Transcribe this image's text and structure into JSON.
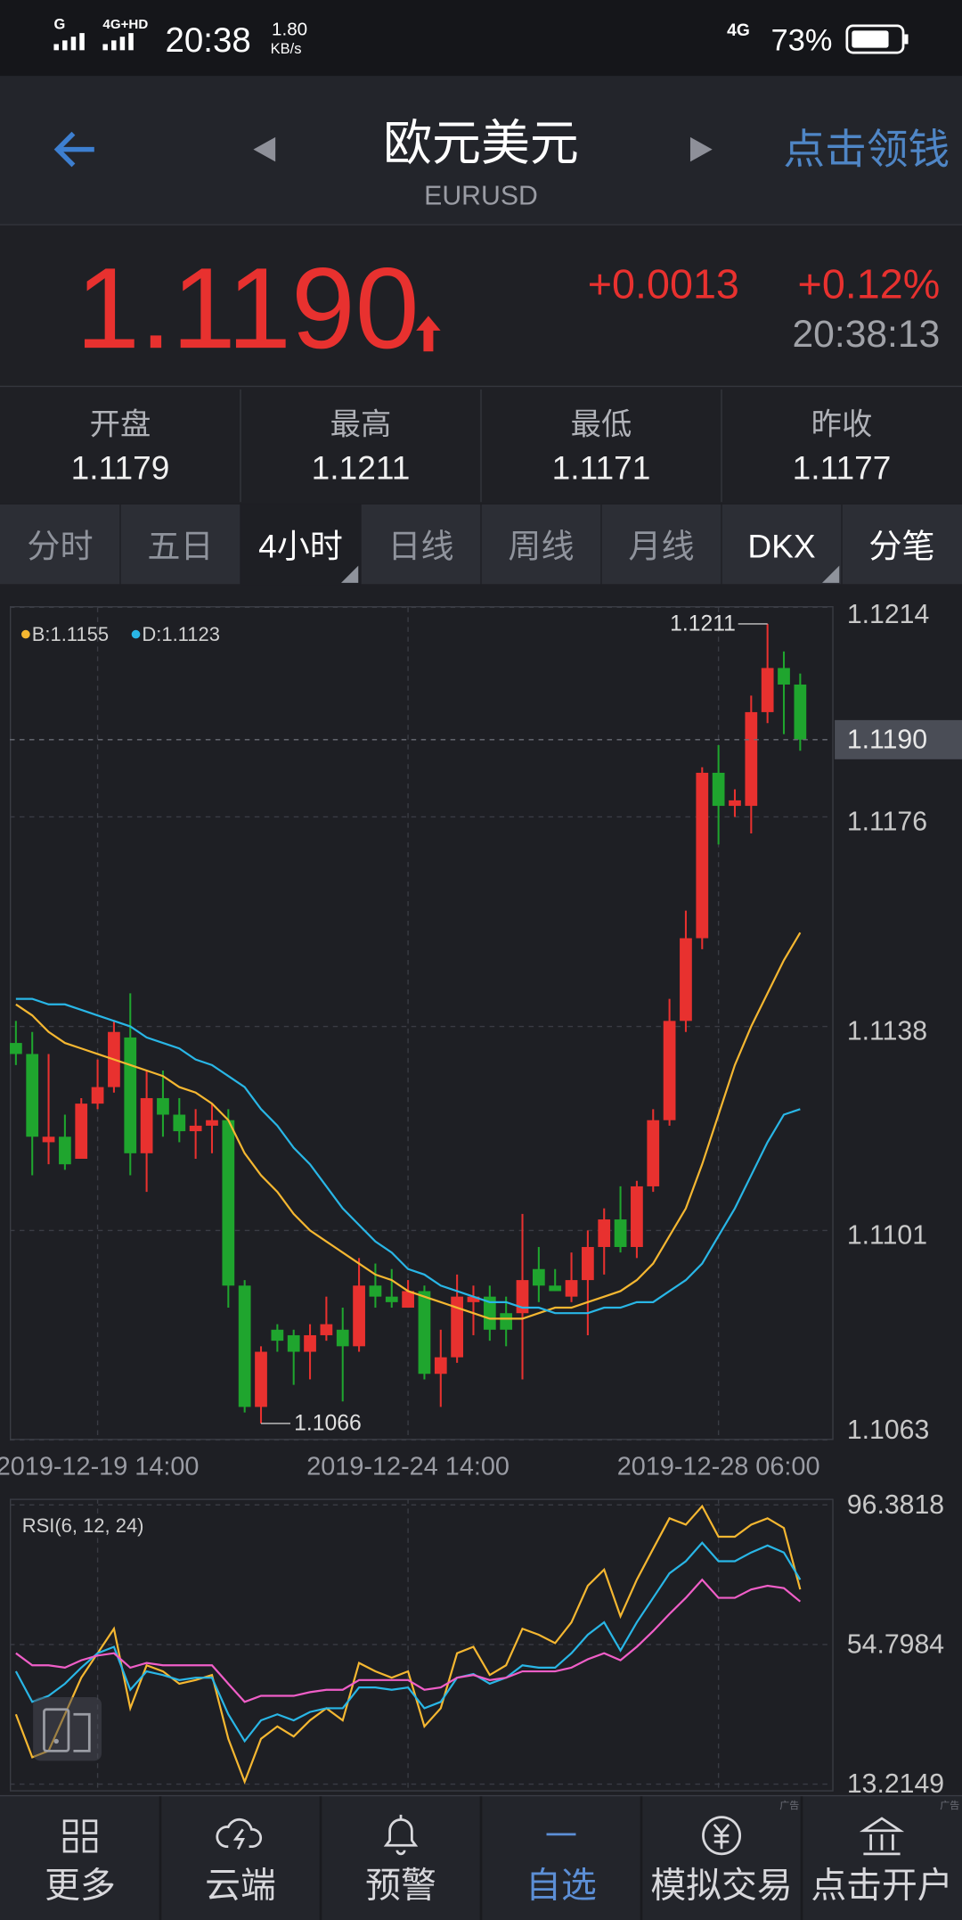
{
  "status_bar": {
    "signal": "G",
    "network": "4G+HD",
    "time": "20:38",
    "speed": "1.80",
    "speed_unit": "KB/s",
    "network2": "4G",
    "battery": "73%"
  },
  "header": {
    "title": "欧元美元",
    "subtitle": "EURUSD",
    "action": "点击领钱"
  },
  "quote": {
    "price": "1.1190",
    "change": "+0.0013",
    "change_pct": "+0.12%",
    "time": "20:38:13"
  },
  "stats": [
    {
      "label": "开盘",
      "value": "1.1179"
    },
    {
      "label": "最高",
      "value": "1.1211"
    },
    {
      "label": "最低",
      "value": "1.1171"
    },
    {
      "label": "昨收",
      "value": "1.1177"
    }
  ],
  "tabs": [
    "分时",
    "五日",
    "4小时",
    "日线",
    "周线",
    "月线",
    "DKX",
    "分笔"
  ],
  "chart_data": [
    {
      "type": "candlestick",
      "categories": [
        null,
        null,
        null,
        null,
        null,
        "2019-12-19 14:00",
        null,
        null,
        null,
        null,
        null,
        null,
        null,
        null,
        null,
        null,
        null,
        null,
        null,
        null,
        null,
        null,
        null,
        null,
        "2019-12-24 14:00",
        null,
        null,
        null,
        null,
        null,
        null,
        null,
        null,
        null,
        null,
        null,
        null,
        null,
        null,
        null,
        null,
        null,
        null,
        "2019-12-28 06:00",
        null,
        null,
        null,
        null,
        null
      ],
      "open": [
        1.1135,
        1.1133,
        1.1117,
        1.1118,
        1.1114,
        1.1124,
        1.1127,
        1.1136,
        1.1115,
        1.1125,
        1.1122,
        1.1119,
        1.112,
        1.1121,
        1.1091,
        1.1069,
        1.1083,
        1.1082,
        1.1079,
        1.1082,
        1.1083,
        1.108,
        1.1091,
        1.1089,
        1.1087,
        1.109,
        1.1075,
        1.1078,
        1.1088,
        1.1089,
        1.1086,
        1.1086,
        1.1094,
        1.1091,
        1.1089,
        1.1092,
        1.1098,
        1.1103,
        1.1098,
        1.1109,
        1.1121,
        1.1139,
        1.1154,
        1.1184,
        1.1178,
        1.1178,
        1.1195,
        1.1203,
        1.12
      ],
      "high": [
        1.1139,
        1.1137,
        1.1133,
        1.1122,
        1.1125,
        1.1132,
        1.1139,
        1.1144,
        1.113,
        1.113,
        1.1125,
        1.1123,
        1.1124,
        1.1123,
        1.1092,
        1.108,
        1.1084,
        1.1083,
        1.1084,
        1.1089,
        1.1087,
        1.1096,
        1.1095,
        1.1094,
        1.1092,
        1.1091,
        1.1083,
        1.1093,
        1.1091,
        1.1091,
        1.1089,
        1.1104,
        1.1098,
        1.1094,
        1.1097,
        1.1101,
        1.1105,
        1.1109,
        1.111,
        1.1123,
        1.1143,
        1.1159,
        1.1185,
        1.1189,
        1.1181,
        1.1198,
        1.1211,
        1.1206,
        1.1202
      ],
      "low": [
        1.1131,
        1.1111,
        1.1113,
        1.1112,
        1.1114,
        1.1123,
        1.1126,
        1.1111,
        1.1108,
        1.1118,
        1.1117,
        1.1114,
        1.1115,
        1.1087,
        1.1068,
        1.1066,
        1.1079,
        1.1073,
        1.1074,
        1.1081,
        1.107,
        1.1079,
        1.1087,
        1.1087,
        1.1087,
        1.1074,
        1.1069,
        1.1077,
        1.1082,
        1.1081,
        1.108,
        1.1074,
        1.1088,
        1.109,
        1.1088,
        1.1082,
        1.1093,
        1.1097,
        1.1096,
        1.1108,
        1.112,
        1.1137,
        1.1152,
        1.1171,
        1.1176,
        1.1173,
        1.1193,
        1.1191,
        1.1188
      ],
      "close": [
        1.1133,
        1.1118,
        1.1118,
        1.1113,
        1.1124,
        1.1127,
        1.1137,
        1.1115,
        1.1125,
        1.1122,
        1.1119,
        1.112,
        1.1121,
        1.1091,
        1.1069,
        1.1079,
        1.1081,
        1.1079,
        1.1082,
        1.1084,
        1.108,
        1.1091,
        1.1089,
        1.1088,
        1.109,
        1.1075,
        1.1078,
        1.1089,
        1.1089,
        1.1083,
        1.1083,
        1.1092,
        1.1091,
        1.109,
        1.1092,
        1.1098,
        1.1103,
        1.1098,
        1.1109,
        1.1121,
        1.1139,
        1.1154,
        1.1184,
        1.1178,
        1.1179,
        1.1195,
        1.1203,
        1.12,
        1.119
      ],
      "up_color": "#e8312f",
      "down_color": "#1fa52e",
      "series": [
        {
          "name": "B:1.1155",
          "color": "#f5b731",
          "values": [
            1.1142,
            1.114,
            1.1137,
            1.1135,
            1.1134,
            1.1133,
            1.1132,
            1.1131,
            1.113,
            1.1129,
            1.1127,
            1.1126,
            1.1124,
            1.1121,
            1.1115,
            1.1111,
            1.1108,
            1.1104,
            1.1101,
            1.1099,
            1.1097,
            1.1095,
            1.1093,
            1.1092,
            1.109,
            1.1089,
            1.1088,
            1.1087,
            1.1086,
            1.1085,
            1.1085,
            1.1085,
            1.1086,
            1.1087,
            1.1087,
            1.1088,
            1.1089,
            1.109,
            1.1092,
            1.1095,
            1.11,
            1.1105,
            1.1113,
            1.1122,
            1.1131,
            1.1138,
            1.1144,
            1.115,
            1.1155
          ]
        },
        {
          "name": "D:1.1123",
          "color": "#29b6e6",
          "values": [
            1.1143,
            1.1143,
            1.1142,
            1.1142,
            1.1141,
            1.114,
            1.1139,
            1.1138,
            1.1136,
            1.1135,
            1.1134,
            1.1132,
            1.1131,
            1.1129,
            1.1127,
            1.1123,
            1.112,
            1.1116,
            1.1113,
            1.1109,
            1.1105,
            1.1102,
            1.1099,
            1.1097,
            1.1094,
            1.1093,
            1.1091,
            1.109,
            1.1089,
            1.1088,
            1.1088,
            1.1087,
            1.1087,
            1.1086,
            1.1086,
            1.1086,
            1.1087,
            1.1087,
            1.1088,
            1.1088,
            1.109,
            1.1092,
            1.1095,
            1.11,
            1.1105,
            1.1111,
            1.1117,
            1.1122,
            1.1123
          ]
        }
      ],
      "ylim": [
        1.1063,
        1.1214
      ],
      "yticks": [
        1.1214,
        1.1176,
        1.1138,
        1.1101,
        1.1063
      ],
      "grid": true,
      "last": {
        "value": 1.119,
        "label": "1.1190"
      },
      "annotations": [
        {
          "value": 1.1211,
          "label": "1.1211"
        },
        {
          "value": 1.1066,
          "label": "1.1066"
        }
      ]
    },
    {
      "type": "line",
      "title": "RSI(6, 12, 24)",
      "series": [
        {
          "color": "#f5b731",
          "values": [
            34.0,
            21.2,
            23.1,
            34.0,
            44.9,
            52.2,
            59.5,
            35.8,
            48.6,
            46.8,
            43.1,
            44.2,
            45.7,
            26.7,
            13.9,
            26.7,
            30.4,
            27.4,
            32.2,
            35.8,
            32.2,
            49.3,
            46.8,
            44.9,
            46.8,
            30.4,
            35.8,
            52.2,
            54.1,
            45.7,
            48.6,
            59.5,
            57.7,
            55.2,
            61.4,
            72.3,
            77.1,
            63.2,
            74.1,
            83.3,
            92.4,
            90.5,
            96.0,
            86.9,
            86.9,
            90.5,
            92.4,
            89.5,
            71.2
          ]
        },
        {
          "color": "#29b6e6",
          "values": [
            46.8,
            37.7,
            39.5,
            43.1,
            47.9,
            52.2,
            54.1,
            41.3,
            46.8,
            45.7,
            44.2,
            44.9,
            44.9,
            34.0,
            26.0,
            32.2,
            34.0,
            32.2,
            34.7,
            35.8,
            35.8,
            42.0,
            42.0,
            41.3,
            42.0,
            35.8,
            37.7,
            44.9,
            46.0,
            43.1,
            44.9,
            48.6,
            47.9,
            47.9,
            52.2,
            57.7,
            61.4,
            53.0,
            61.4,
            68.7,
            76.0,
            79.6,
            85.1,
            79.6,
            79.6,
            82.2,
            84.3,
            82.2,
            74.1
          ]
        },
        {
          "color": "#f05ec8",
          "values": [
            52.2,
            48.6,
            48.6,
            47.9,
            50.1,
            51.5,
            52.2,
            47.9,
            49.3,
            48.6,
            48.6,
            48.6,
            48.6,
            43.1,
            37.7,
            39.5,
            39.5,
            39.5,
            40.6,
            41.3,
            41.3,
            44.2,
            44.2,
            44.2,
            44.2,
            41.3,
            42.0,
            44.9,
            45.7,
            44.2,
            44.9,
            46.8,
            46.8,
            46.8,
            47.9,
            50.4,
            52.2,
            50.1,
            54.1,
            58.8,
            63.9,
            68.7,
            74.1,
            68.7,
            68.7,
            71.2,
            72.3,
            71.6,
            67.6
          ]
        }
      ],
      "ylim": [
        13.2149,
        96.3818
      ],
      "yticks": [
        96.3818,
        54.7984,
        13.2149
      ],
      "grid": true
    }
  ],
  "nav": [
    "更多",
    "云端",
    "预警",
    "自选",
    "模拟交易",
    "点击开户"
  ],
  "ad_tag": "广告"
}
